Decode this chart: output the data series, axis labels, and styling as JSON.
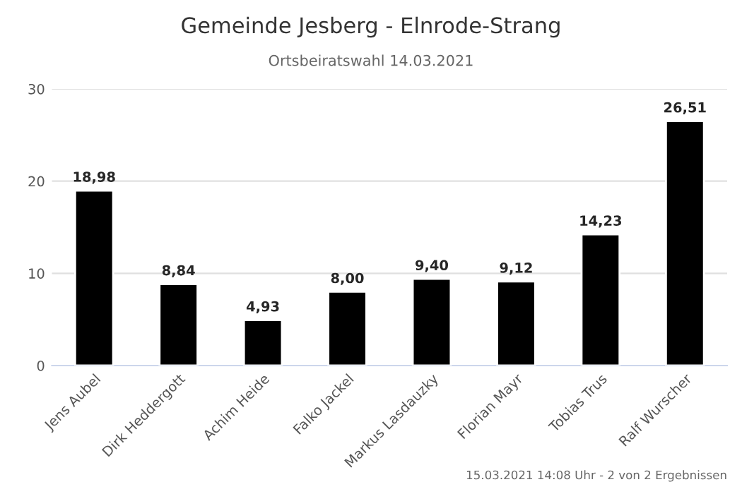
{
  "chart_data": {
    "type": "bar",
    "title": "Gemeinde Jesberg - Elnrode-Strang",
    "subtitle": "Ortsbeiratswahl 14.03.2021",
    "categories": [
      "Jens Aubel",
      "Dirk Heddergott",
      "Achim Heide",
      "Falko Jackel",
      "Markus Lasdauzky",
      "Florian Mayr",
      "Tobias Trus",
      "Ralf Wurscher"
    ],
    "values": [
      18.98,
      8.84,
      4.93,
      8.0,
      9.4,
      9.12,
      14.23,
      26.51
    ],
    "value_labels": [
      "18,98",
      "8,84",
      "4,93",
      "8,00",
      "9,40",
      "9,12",
      "14,23",
      "26,51"
    ],
    "color": "#000000",
    "ylim": [
      0,
      30
    ],
    "yticks": [
      0,
      10,
      20,
      30
    ],
    "grid": "y",
    "annotations": [
      "15.03.2021 14:08 Uhr - 2 von 2 Ergebnissen"
    ]
  }
}
